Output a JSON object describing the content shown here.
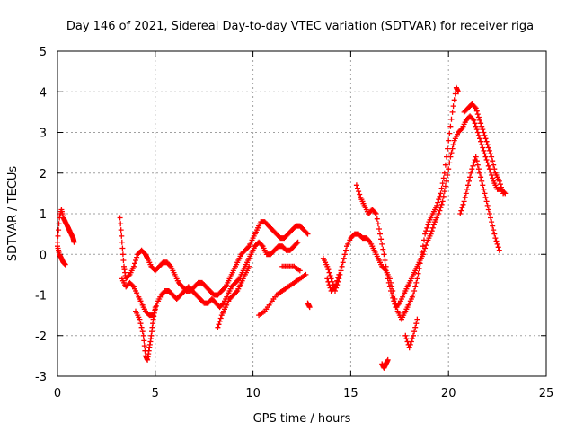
{
  "chart_data": {
    "type": "scatter",
    "title": "Day 146 of 2021, Sidereal Day-to-day VTEC variation (SDTVAR) for receiver riga",
    "xlabel": "GPS time / hours",
    "ylabel": "SDTVAR / TECUs",
    "xlim": [
      0,
      25
    ],
    "ylim": [
      -3,
      5
    ],
    "xticks": [
      0,
      5,
      10,
      15,
      20,
      25
    ],
    "yticks": [
      -3,
      -2,
      -1,
      0,
      1,
      2,
      3,
      4,
      5
    ],
    "xtick_labels": [
      "0",
      "5",
      "10",
      "15",
      "20",
      "25"
    ],
    "ytick_labels": [
      "-3",
      "-2",
      "-1",
      "0",
      "1",
      "2",
      "3",
      "4",
      "5"
    ],
    "grid": true,
    "marker": "+",
    "series_color": "#ff0000",
    "series": [
      {
        "name": "SDTVAR",
        "segments": [
          [
            [
              0.0,
              0.3
            ],
            [
              0.1,
              0.9
            ],
            [
              0.2,
              1.1
            ],
            [
              0.3,
              0.9
            ],
            [
              0.4,
              0.8
            ],
            [
              0.5,
              0.7
            ],
            [
              0.6,
              0.6
            ],
            [
              0.7,
              0.5
            ],
            [
              0.8,
              0.4
            ],
            [
              0.85,
              0.3
            ]
          ],
          [
            [
              0.0,
              0.2
            ],
            [
              0.1,
              0.0
            ],
            [
              0.2,
              -0.1
            ],
            [
              0.3,
              -0.2
            ],
            [
              0.4,
              -0.25
            ]
          ],
          [
            [
              3.2,
              0.9
            ],
            [
              3.3,
              0.3
            ],
            [
              3.4,
              -0.3
            ],
            [
              3.5,
              -0.6
            ],
            [
              3.7,
              -0.5
            ],
            [
              3.9,
              -0.3
            ],
            [
              4.1,
              0.0
            ],
            [
              4.3,
              0.1
            ],
            [
              4.5,
              0.0
            ],
            [
              4.6,
              -0.1
            ],
            [
              4.8,
              -0.3
            ],
            [
              5.0,
              -0.4
            ],
            [
              5.2,
              -0.3
            ],
            [
              5.4,
              -0.2
            ],
            [
              5.6,
              -0.2
            ],
            [
              5.8,
              -0.3
            ],
            [
              6.0,
              -0.5
            ],
            [
              6.2,
              -0.7
            ],
            [
              6.4,
              -0.8
            ],
            [
              6.6,
              -0.9
            ],
            [
              6.8,
              -0.9
            ],
            [
              7.0,
              -0.8
            ],
            [
              7.2,
              -0.7
            ],
            [
              7.4,
              -0.7
            ],
            [
              7.6,
              -0.8
            ],
            [
              7.8,
              -0.9
            ],
            [
              8.0,
              -1.0
            ],
            [
              8.2,
              -1.0
            ],
            [
              8.4,
              -0.9
            ],
            [
              8.6,
              -0.8
            ],
            [
              8.8,
              -0.6
            ],
            [
              9.0,
              -0.4
            ],
            [
              9.2,
              -0.2
            ],
            [
              9.4,
              0.0
            ],
            [
              9.6,
              0.1
            ],
            [
              9.8,
              0.2
            ],
            [
              10.0,
              0.4
            ],
            [
              10.2,
              0.6
            ],
            [
              10.4,
              0.8
            ],
            [
              10.6,
              0.8
            ],
            [
              10.8,
              0.7
            ],
            [
              11.0,
              0.6
            ],
            [
              11.2,
              0.5
            ],
            [
              11.4,
              0.4
            ],
            [
              11.6,
              0.4
            ],
            [
              11.8,
              0.5
            ],
            [
              12.0,
              0.6
            ],
            [
              12.2,
              0.7
            ],
            [
              12.4,
              0.7
            ],
            [
              12.6,
              0.6
            ],
            [
              12.8,
              0.5
            ]
          ],
          [
            [
              3.3,
              -0.6
            ],
            [
              3.5,
              -0.8
            ],
            [
              3.7,
              -0.7
            ],
            [
              3.9,
              -0.8
            ],
            [
              4.1,
              -1.0
            ],
            [
              4.3,
              -1.2
            ],
            [
              4.5,
              -1.4
            ],
            [
              4.7,
              -1.5
            ],
            [
              4.9,
              -1.5
            ],
            [
              5.1,
              -1.2
            ],
            [
              5.3,
              -1.0
            ],
            [
              5.5,
              -0.9
            ],
            [
              5.7,
              -0.9
            ],
            [
              5.9,
              -1.0
            ],
            [
              6.1,
              -1.1
            ],
            [
              6.3,
              -1.0
            ],
            [
              6.5,
              -0.9
            ],
            [
              6.7,
              -0.8
            ],
            [
              6.9,
              -0.9
            ],
            [
              7.1,
              -1.0
            ],
            [
              7.3,
              -1.1
            ],
            [
              7.5,
              -1.2
            ],
            [
              7.7,
              -1.2
            ],
            [
              7.9,
              -1.1
            ],
            [
              8.1,
              -1.2
            ],
            [
              8.3,
              -1.3
            ],
            [
              8.5,
              -1.2
            ],
            [
              8.7,
              -1.0
            ],
            [
              8.9,
              -0.8
            ],
            [
              9.1,
              -0.7
            ],
            [
              9.3,
              -0.6
            ],
            [
              9.5,
              -0.4
            ],
            [
              9.7,
              -0.2
            ],
            [
              9.9,
              0.0
            ],
            [
              10.1,
              0.2
            ],
            [
              10.3,
              0.3
            ],
            [
              10.5,
              0.2
            ],
            [
              10.7,
              0.0
            ],
            [
              10.9,
              0.0
            ],
            [
              11.1,
              0.1
            ],
            [
              11.3,
              0.2
            ],
            [
              11.5,
              0.2
            ],
            [
              11.7,
              0.1
            ],
            [
              11.9,
              0.1
            ],
            [
              12.1,
              0.2
            ],
            [
              12.3,
              0.3
            ]
          ],
          [
            [
              4.0,
              -1.4
            ],
            [
              4.2,
              -1.6
            ],
            [
              4.4,
              -2.0
            ],
            [
              4.5,
              -2.5
            ],
            [
              4.6,
              -2.6
            ],
            [
              4.7,
              -2.3
            ],
            [
              4.8,
              -2.0
            ],
            [
              4.9,
              -1.6
            ],
            [
              5.0,
              -1.3
            ]
          ],
          [
            [
              8.2,
              -1.8
            ],
            [
              8.4,
              -1.5
            ],
            [
              8.6,
              -1.3
            ],
            [
              8.8,
              -1.1
            ],
            [
              9.0,
              -1.0
            ],
            [
              9.2,
              -0.9
            ],
            [
              9.4,
              -0.7
            ],
            [
              9.6,
              -0.5
            ],
            [
              9.8,
              -0.3
            ]
          ],
          [
            [
              10.3,
              -1.5
            ],
            [
              10.6,
              -1.4
            ],
            [
              10.9,
              -1.2
            ],
            [
              11.2,
              -1.0
            ],
            [
              11.5,
              -0.9
            ],
            [
              11.8,
              -0.8
            ],
            [
              12.1,
              -0.7
            ],
            [
              12.4,
              -0.6
            ],
            [
              12.7,
              -0.5
            ]
          ],
          [
            [
              11.5,
              -0.3
            ],
            [
              11.8,
              -0.3
            ],
            [
              12.1,
              -0.3
            ],
            [
              12.4,
              -0.4
            ]
          ],
          [
            [
              12.8,
              -1.2
            ],
            [
              12.9,
              -1.3
            ]
          ],
          [
            [
              13.6,
              -0.1
            ],
            [
              13.8,
              -0.3
            ],
            [
              14.0,
              -0.6
            ],
            [
              14.2,
              -0.9
            ],
            [
              14.4,
              -0.6
            ],
            [
              14.6,
              -0.2
            ],
            [
              14.8,
              0.2
            ],
            [
              15.0,
              0.4
            ],
            [
              15.2,
              0.5
            ],
            [
              15.4,
              0.5
            ],
            [
              15.6,
              0.4
            ],
            [
              15.8,
              0.4
            ],
            [
              16.0,
              0.3
            ],
            [
              16.2,
              0.1
            ],
            [
              16.4,
              -0.1
            ],
            [
              16.6,
              -0.3
            ],
            [
              16.8,
              -0.4
            ],
            [
              17.0,
              -0.6
            ],
            [
              17.2,
              -1.0
            ],
            [
              17.4,
              -1.4
            ],
            [
              17.6,
              -1.6
            ],
            [
              17.8,
              -1.4
            ],
            [
              18.0,
              -1.2
            ],
            [
              18.2,
              -1.0
            ],
            [
              18.4,
              -0.6
            ],
            [
              18.6,
              -0.1
            ],
            [
              18.8,
              0.5
            ],
            [
              19.0,
              0.8
            ],
            [
              19.2,
              1.0
            ],
            [
              19.4,
              1.2
            ],
            [
              19.6,
              1.5
            ],
            [
              19.8,
              2.0
            ],
            [
              20.0,
              2.8
            ],
            [
              20.2,
              3.5
            ],
            [
              20.4,
              4.1
            ],
            [
              20.5,
              4.0
            ]
          ],
          [
            [
              13.8,
              -0.6
            ],
            [
              14.0,
              -0.9
            ],
            [
              14.2,
              -0.8
            ],
            [
              14.4,
              -0.5
            ]
          ],
          [
            [
              15.3,
              1.7
            ],
            [
              15.5,
              1.4
            ],
            [
              15.7,
              1.2
            ],
            [
              15.9,
              1.0
            ],
            [
              16.1,
              1.1
            ],
            [
              16.3,
              1.0
            ],
            [
              16.5,
              0.5
            ],
            [
              16.7,
              0.0
            ],
            [
              16.9,
              -0.6
            ],
            [
              17.1,
              -1.0
            ],
            [
              17.3,
              -1.3
            ],
            [
              17.5,
              -1.2
            ],
            [
              17.7,
              -1.0
            ],
            [
              17.9,
              -0.8
            ],
            [
              18.1,
              -0.6
            ],
            [
              18.3,
              -0.4
            ],
            [
              18.5,
              -0.2
            ],
            [
              18.7,
              0.0
            ],
            [
              18.9,
              0.3
            ],
            [
              19.1,
              0.5
            ],
            [
              19.3,
              0.8
            ],
            [
              19.5,
              1.0
            ],
            [
              19.7,
              1.3
            ],
            [
              19.9,
              1.8
            ],
            [
              20.1,
              2.4
            ],
            [
              20.3,
              2.8
            ],
            [
              20.5,
              3.0
            ],
            [
              20.7,
              3.1
            ],
            [
              20.9,
              3.3
            ],
            [
              21.1,
              3.4
            ],
            [
              21.3,
              3.3
            ],
            [
              21.5,
              3.0
            ],
            [
              21.7,
              2.7
            ],
            [
              21.9,
              2.4
            ],
            [
              22.1,
              2.1
            ],
            [
              22.3,
              1.8
            ],
            [
              22.5,
              1.6
            ],
            [
              22.7,
              1.6
            ],
            [
              22.9,
              1.5
            ]
          ],
          [
            [
              16.6,
              -2.7
            ],
            [
              16.7,
              -2.8
            ],
            [
              16.8,
              -2.7
            ],
            [
              16.9,
              -2.6
            ]
          ],
          [
            [
              17.8,
              -2.0
            ],
            [
              18.0,
              -2.3
            ],
            [
              18.2,
              -2.0
            ],
            [
              18.4,
              -1.6
            ]
          ],
          [
            [
              20.6,
              1.0
            ],
            [
              20.8,
              1.3
            ],
            [
              21.0,
              1.7
            ],
            [
              21.2,
              2.1
            ],
            [
              21.4,
              2.4
            ],
            [
              21.6,
              2.0
            ],
            [
              21.8,
              1.6
            ],
            [
              22.0,
              1.2
            ],
            [
              22.2,
              0.8
            ],
            [
              22.4,
              0.4
            ],
            [
              22.6,
              0.1
            ]
          ],
          [
            [
              20.8,
              3.5
            ],
            [
              21.0,
              3.6
            ],
            [
              21.2,
              3.7
            ],
            [
              21.4,
              3.6
            ],
            [
              21.6,
              3.3
            ],
            [
              21.8,
              3.0
            ],
            [
              22.0,
              2.7
            ],
            [
              22.2,
              2.4
            ],
            [
              22.4,
              2.0
            ],
            [
              22.6,
              1.8
            ],
            [
              22.8,
              1.5
            ]
          ]
        ]
      }
    ]
  }
}
